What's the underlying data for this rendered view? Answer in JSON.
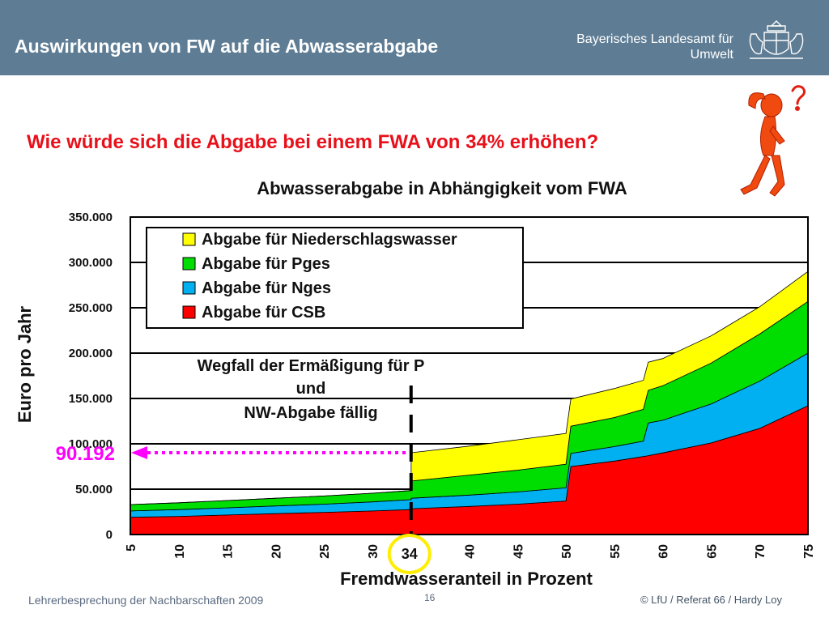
{
  "header": {
    "title": "Auswirkungen von FW auf die Abwasserabgabe",
    "org_line1": "Bayerisches Landesamt für",
    "org_line2": "Umwelt"
  },
  "question": "Wie würde sich die Abgabe bei einem FWA von 34% erhöhen?",
  "chart_data": {
    "type": "area",
    "stacked": true,
    "title": "Abwasserabgabe in Abhängigkeit vom FWA",
    "xlabel": "Fremdwasseranteil in Prozent",
    "ylabel": "Euro pro Jahr",
    "ylim": [
      0,
      350000
    ],
    "xlim": [
      5,
      75
    ],
    "yticks": [
      0,
      50000,
      100000,
      150000,
      200000,
      250000,
      300000,
      350000
    ],
    "ytick_labels": [
      "0",
      "50.000",
      "100.000",
      "150.000",
      "200.000",
      "250.000",
      "300.000",
      "350.000"
    ],
    "xticks": [
      5,
      10,
      15,
      20,
      25,
      30,
      40,
      45,
      50,
      55,
      60,
      65,
      70,
      75
    ],
    "xtick_labels": [
      "5",
      "10",
      "15",
      "20",
      "25",
      "30",
      "40",
      "45",
      "50",
      "55",
      "60",
      "65",
      "70",
      "75"
    ],
    "grid": true,
    "legend_position": "top-left",
    "x": [
      5,
      10,
      15,
      20,
      25,
      30,
      34,
      34.01,
      40,
      45,
      50,
      50.5,
      55,
      58,
      58.5,
      60,
      65,
      70,
      75
    ],
    "series": [
      {
        "name": "Abgabe für CSB",
        "color": "#ff0000",
        "values": [
          19000,
          20000,
          21500,
          23000,
          24500,
          26000,
          27500,
          28500,
          31000,
          33500,
          37000,
          75000,
          81000,
          86000,
          87000,
          90000,
          101000,
          117000,
          142000
        ]
      },
      {
        "name": "Abgabe für Nges",
        "color": "#00b0f0",
        "values": [
          7000,
          7500,
          8000,
          8500,
          9000,
          10000,
          11000,
          11500,
          12500,
          13500,
          14500,
          14500,
          16000,
          17000,
          36000,
          36000,
          43000,
          52000,
          58000
        ]
      },
      {
        "name": "Abgabe für Pges",
        "color": "#00dd00",
        "values": [
          7000,
          7500,
          8000,
          8500,
          9000,
          9500,
          10000,
          19000,
          22000,
          24000,
          26000,
          30000,
          32000,
          35000,
          36000,
          38000,
          45000,
          52000,
          57000
        ]
      },
      {
        "name": "Abgabe für Niederschlagswasser",
        "color": "#ffff00",
        "values": [
          0,
          0,
          0,
          0,
          0,
          0,
          0,
          31200,
          32000,
          33500,
          34000,
          30000,
          32000,
          32000,
          31000,
          30000,
          30000,
          30000,
          33000
        ]
      }
    ],
    "annotations": {
      "note_line1": "Wegfall der Ermäßigung für P",
      "note_line2": "und",
      "note_line3": "NW-Abgabe fällig",
      "marker_x": 34,
      "marker_label": "34",
      "value_x": 34,
      "value_y": 90192,
      "value_label": "90.192"
    }
  },
  "footer": {
    "left": "Lehrerbesprechung  der Nachbarschaften 2009",
    "page": "16",
    "right": "© LfU / Referat 66 / Hardy Loy"
  },
  "colors": {
    "header_bg": "#5e7d95",
    "question": "#e8101a",
    "value_highlight": "#ff00ff",
    "circle": "#ffee00"
  },
  "icons": [
    "coat-of-arms-icon",
    "confused-figure-icon"
  ]
}
